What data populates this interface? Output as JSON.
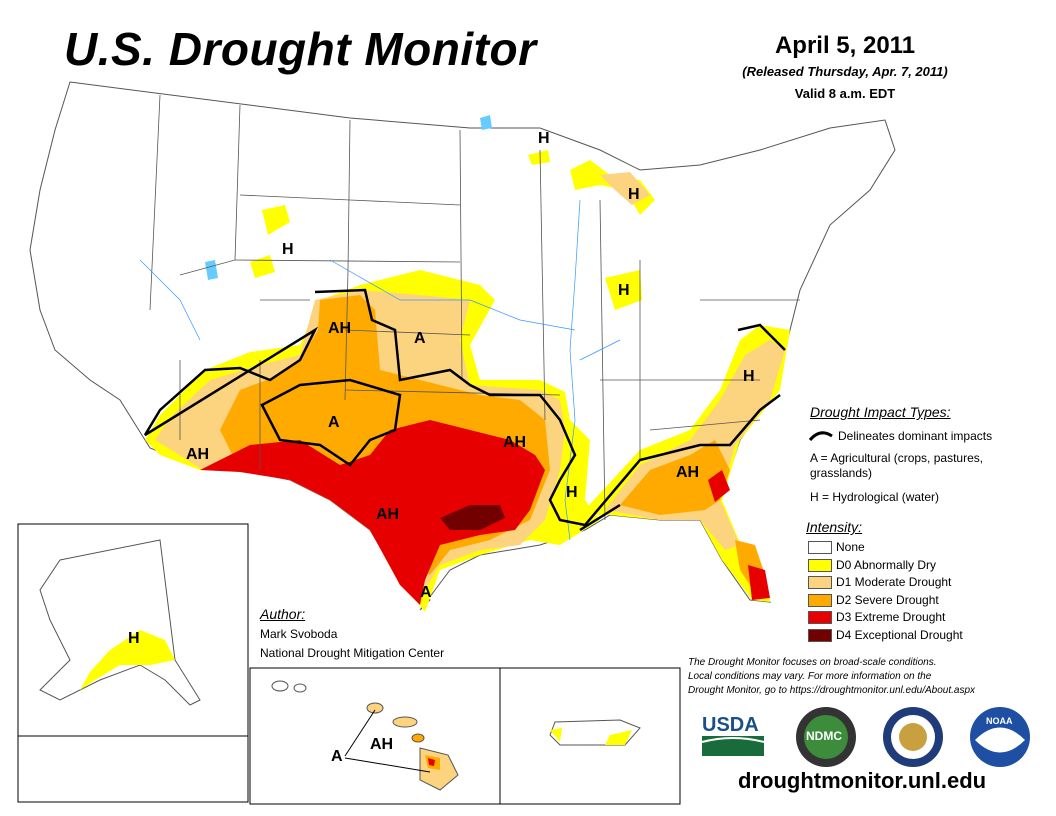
{
  "header": {
    "title": "U.S. Drought Monitor",
    "date": "April 5, 2011",
    "released": "(Released Thursday, Apr. 7, 2011)",
    "valid": "Valid 8 a.m. EDT"
  },
  "legend": {
    "impact_types_heading": "Drought Impact Types:",
    "delineates": "Delineates dominant impacts",
    "agricultural_line1": "A = Agricultural (crops, pastures,",
    "agricultural_line2": "grasslands)",
    "hydrological": "H = Hydrological (water)",
    "intensity_heading": "Intensity:",
    "categories": [
      {
        "label": "None",
        "color": "#ffffff"
      },
      {
        "label": "D0 Abnormally Dry",
        "color": "#ffff00"
      },
      {
        "label": "D1 Moderate Drought",
        "color": "#fcd37f"
      },
      {
        "label": "D2 Severe Drought",
        "color": "#ffaa00"
      },
      {
        "label": "D3 Extreme Drought",
        "color": "#e60000"
      },
      {
        "label": "D4 Exceptional Drought",
        "color": "#730000"
      }
    ]
  },
  "map_labels": {
    "h_michigan_up": "H",
    "h_michigan_low": "H",
    "h_wyoming": "H",
    "h_ohio": "H",
    "ah_colorado": "AH",
    "a_kansas": "A",
    "a_new_mexico": "A",
    "ah_arizona": "AH",
    "ah_oklahoma": "AH",
    "ah_texas": "AH",
    "a_texas_south": "A",
    "h_mississippi": "H",
    "h_carolina": "H",
    "ah_georgia": "AH",
    "h_alaska": "H",
    "a_hawaii": "A",
    "ah_hawaii": "AH"
  },
  "author": {
    "heading": "Author:",
    "name": "Mark Svoboda",
    "organization": "National Drought Mitigation Center"
  },
  "disclaimer": {
    "line1": "The Drought Monitor focuses on broad-scale conditions.",
    "line2": "Local conditions may vary. For more information on the",
    "line3": "Drought Monitor, go to https://droughtmonitor.unl.edu/About.aspx"
  },
  "logos": {
    "usda": "USDA",
    "ndmc": "NDMC",
    "noaa": "NOAA"
  },
  "website": "droughtmonitor.unl.edu"
}
